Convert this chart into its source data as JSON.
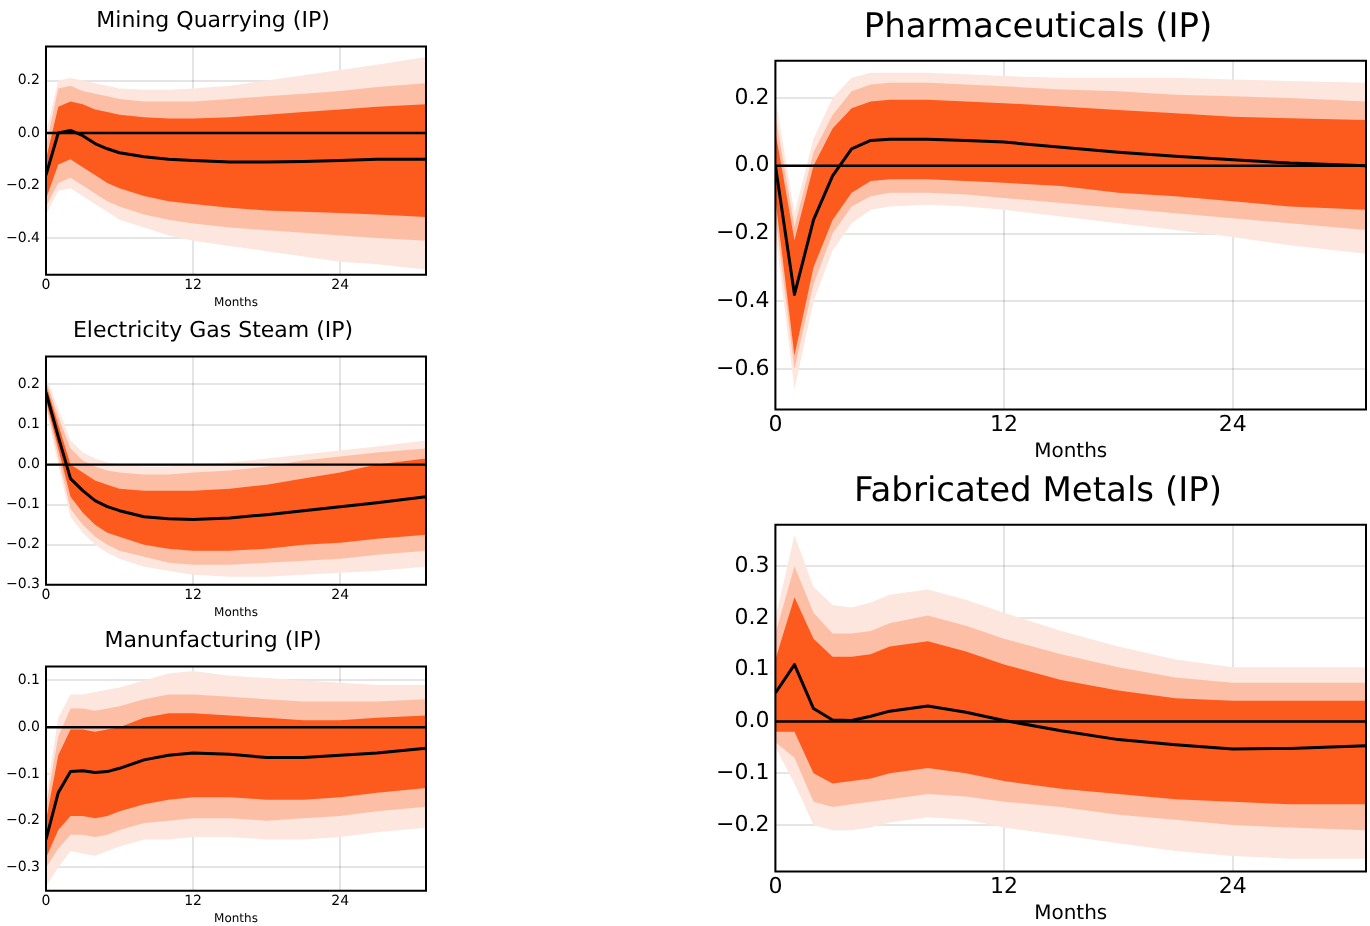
{
  "chart_data": [
    {
      "type": "line",
      "title": "Mining Quarrying (IP)",
      "xlabel": "Months",
      "x": [
        0,
        1,
        2,
        3,
        4,
        5,
        6,
        8,
        10,
        12,
        15,
        18,
        21,
        24,
        27,
        31
      ],
      "xlim": [
        0,
        31
      ],
      "xticks": [
        0,
        12,
        24
      ],
      "ylim": [
        -0.54,
        0.33
      ],
      "yticks": [
        {
          "value": -0.4,
          "label": "−0.4"
        },
        {
          "value": -0.2,
          "label": "−0.2"
        },
        {
          "value": 0,
          "label": "0.0"
        },
        0.2
      ],
      "grid": true,
      "ref_lines": [
        {
          "axis": "y",
          "value": 0,
          "color": "#000000"
        }
      ],
      "series": [
        {
          "color": "#fde6dd",
          "values": [
            null,
            null,
            null,
            null,
            null,
            null,
            null,
            null,
            null,
            null,
            null,
            null,
            null,
            null,
            null,
            null
          ],
          "upper": [
            0.0,
            0.2,
            0.21,
            0.2,
            0.19,
            0.18,
            0.17,
            0.165,
            0.165,
            0.17,
            0.18,
            0.2,
            0.22,
            0.24,
            0.26,
            0.29
          ],
          "lower": [
            -0.31,
            -0.22,
            -0.21,
            -0.24,
            -0.27,
            -0.3,
            -0.33,
            -0.36,
            -0.39,
            -0.41,
            -0.43,
            -0.45,
            -0.47,
            -0.49,
            -0.5,
            -0.52
          ]
        },
        {
          "color": "#fcbfa6",
          "values": [
            null,
            null,
            null,
            null,
            null,
            null,
            null,
            null,
            null,
            null,
            null,
            null,
            null,
            null,
            null,
            null
          ],
          "upper": [
            -0.05,
            0.17,
            0.18,
            0.16,
            0.15,
            0.14,
            0.13,
            0.12,
            0.12,
            0.12,
            0.13,
            0.14,
            0.15,
            0.16,
            0.175,
            0.19
          ],
          "lower": [
            -0.28,
            -0.19,
            -0.17,
            -0.2,
            -0.23,
            -0.26,
            -0.28,
            -0.31,
            -0.33,
            -0.345,
            -0.36,
            -0.37,
            -0.38,
            -0.39,
            -0.4,
            -0.41
          ]
        },
        {
          "color": "#fd5a1e",
          "values": [
            null,
            null,
            null,
            null,
            null,
            null,
            null,
            null,
            null,
            null,
            null,
            null,
            null,
            null,
            null,
            null
          ],
          "upper": [
            -0.1,
            0.1,
            0.12,
            0.11,
            0.09,
            0.08,
            0.07,
            0.06,
            0.055,
            0.055,
            0.06,
            0.07,
            0.08,
            0.09,
            0.1,
            0.11
          ],
          "lower": [
            -0.25,
            -0.12,
            -0.1,
            -0.13,
            -0.16,
            -0.19,
            -0.21,
            -0.24,
            -0.26,
            -0.27,
            -0.285,
            -0.295,
            -0.3,
            -0.305,
            -0.31,
            -0.32
          ]
        },
        {
          "color": "#000000",
          "values": [
            -0.16,
            0.0,
            0.01,
            -0.01,
            -0.04,
            -0.06,
            -0.075,
            -0.09,
            -0.1,
            -0.105,
            -0.11,
            -0.11,
            -0.108,
            -0.105,
            -0.1,
            -0.1
          ]
        }
      ]
    },
    {
      "type": "line",
      "title": "Electricity Gas Steam (IP)",
      "xlabel": "Months",
      "x": [
        0,
        1,
        2,
        3,
        4,
        5,
        6,
        8,
        10,
        12,
        15,
        18,
        21,
        24,
        27,
        31
      ],
      "xlim": [
        0,
        31
      ],
      "xticks": [
        0,
        12,
        24
      ],
      "ylim": [
        -0.3,
        0.27
      ],
      "yticks": [
        {
          "value": -0.3,
          "label": "−0.3"
        },
        {
          "value": -0.2,
          "label": "−0.2"
        },
        {
          "value": -0.1,
          "label": "−0.1"
        },
        {
          "value": 0,
          "label": "0.0"
        },
        0.1,
        0.2
      ],
      "grid": true,
      "ref_lines": [
        {
          "axis": "y",
          "value": 0,
          "color": "#000000"
        }
      ],
      "series": [
        {
          "color": "#fde6dd",
          "values": [
            null,
            null,
            null,
            null,
            null,
            null,
            null,
            null,
            null,
            null,
            null,
            null,
            null,
            null,
            null,
            null
          ],
          "upper": [
            0.22,
            0.14,
            0.06,
            0.03,
            0.015,
            0.005,
            0.0,
            -0.005,
            -0.005,
            0.0,
            0.005,
            0.015,
            0.025,
            0.035,
            0.045,
            0.06
          ],
          "lower": [
            0.14,
            0.0,
            -0.13,
            -0.17,
            -0.2,
            -0.22,
            -0.235,
            -0.255,
            -0.265,
            -0.275,
            -0.28,
            -0.28,
            -0.275,
            -0.27,
            -0.265,
            -0.255
          ]
        },
        {
          "color": "#fcbfa6",
          "values": [
            null,
            null,
            null,
            null,
            null,
            null,
            null,
            null,
            null,
            null,
            null,
            null,
            null,
            null,
            null,
            null
          ],
          "upper": [
            0.21,
            0.12,
            0.04,
            0.01,
            -0.005,
            -0.015,
            -0.02,
            -0.025,
            -0.025,
            -0.02,
            -0.015,
            -0.005,
            0.01,
            0.02,
            0.03,
            0.04
          ],
          "lower": [
            0.15,
            0.02,
            -0.11,
            -0.15,
            -0.18,
            -0.2,
            -0.215,
            -0.23,
            -0.245,
            -0.25,
            -0.25,
            -0.245,
            -0.24,
            -0.235,
            -0.225,
            -0.215
          ]
        },
        {
          "color": "#fd5a1e",
          "values": [
            null,
            null,
            null,
            null,
            null,
            null,
            null,
            null,
            null,
            null,
            null,
            null,
            null,
            null,
            null,
            null
          ],
          "upper": [
            0.2,
            0.1,
            0.0,
            -0.02,
            -0.04,
            -0.05,
            -0.06,
            -0.065,
            -0.065,
            -0.065,
            -0.06,
            -0.05,
            -0.035,
            -0.02,
            0.0,
            0.015
          ],
          "lower": [
            0.16,
            0.04,
            -0.08,
            -0.12,
            -0.15,
            -0.17,
            -0.18,
            -0.2,
            -0.21,
            -0.215,
            -0.215,
            -0.21,
            -0.2,
            -0.195,
            -0.185,
            -0.175
          ]
        },
        {
          "color": "#000000",
          "values": [
            0.18,
            0.07,
            -0.035,
            -0.065,
            -0.09,
            -0.105,
            -0.115,
            -0.13,
            -0.135,
            -0.137,
            -0.133,
            -0.125,
            -0.115,
            -0.105,
            -0.095,
            -0.08
          ]
        }
      ]
    },
    {
      "type": "line",
      "title": "Manunfacturing (IP)",
      "xlabel": "Months",
      "x": [
        0,
        1,
        2,
        3,
        4,
        5,
        6,
        8,
        10,
        12,
        15,
        18,
        21,
        24,
        27,
        31
      ],
      "xlim": [
        0,
        31
      ],
      "xticks": [
        0,
        12,
        24
      ],
      "ylim": [
        -0.35,
        0.13
      ],
      "yticks": [
        {
          "value": -0.3,
          "label": "−0.3"
        },
        {
          "value": -0.2,
          "label": "−0.2"
        },
        {
          "value": -0.1,
          "label": "−0.1"
        },
        {
          "value": 0,
          "label": "0.0"
        },
        0.1
      ],
      "grid": true,
      "ref_lines": [
        {
          "axis": "y",
          "value": 0,
          "color": "#000000"
        }
      ],
      "series": [
        {
          "color": "#fde6dd",
          "values": [
            null,
            null,
            null,
            null,
            null,
            null,
            null,
            null,
            null,
            null,
            null,
            null,
            null,
            null,
            null,
            null
          ],
          "upper": [
            -0.15,
            0.02,
            0.07,
            0.07,
            0.075,
            0.08,
            0.085,
            0.1,
            0.115,
            0.12,
            0.11,
            0.105,
            0.1,
            0.095,
            0.09,
            0.09
          ],
          "lower": [
            -0.34,
            -0.3,
            -0.265,
            -0.27,
            -0.275,
            -0.265,
            -0.255,
            -0.24,
            -0.24,
            -0.235,
            -0.235,
            -0.24,
            -0.24,
            -0.235,
            -0.225,
            -0.215
          ]
        },
        {
          "color": "#fcbfa6",
          "values": [
            null,
            null,
            null,
            null,
            null,
            null,
            null,
            null,
            null,
            null,
            null,
            null,
            null,
            null,
            null,
            null
          ],
          "upper": [
            -0.17,
            -0.02,
            0.04,
            0.04,
            0.035,
            0.04,
            0.045,
            0.06,
            0.07,
            0.07,
            0.065,
            0.06,
            0.055,
            0.055,
            0.055,
            0.06
          ],
          "lower": [
            -0.3,
            -0.26,
            -0.23,
            -0.23,
            -0.235,
            -0.23,
            -0.22,
            -0.205,
            -0.2,
            -0.195,
            -0.195,
            -0.2,
            -0.195,
            -0.19,
            -0.18,
            -0.17
          ]
        },
        {
          "color": "#fd5a1e",
          "values": [
            null,
            null,
            null,
            null,
            null,
            null,
            null,
            null,
            null,
            null,
            null,
            null,
            null,
            null,
            null,
            null
          ],
          "upper": [
            -0.2,
            -0.06,
            -0.005,
            -0.005,
            -0.01,
            -0.005,
            0.0,
            0.02,
            0.03,
            0.03,
            0.025,
            0.02,
            0.015,
            0.015,
            0.02,
            0.025
          ],
          "lower": [
            -0.28,
            -0.22,
            -0.19,
            -0.19,
            -0.195,
            -0.19,
            -0.18,
            -0.165,
            -0.155,
            -0.15,
            -0.15,
            -0.155,
            -0.155,
            -0.15,
            -0.14,
            -0.13
          ]
        },
        {
          "color": "#000000",
          "values": [
            -0.24,
            -0.14,
            -0.095,
            -0.093,
            -0.097,
            -0.095,
            -0.088,
            -0.07,
            -0.06,
            -0.055,
            -0.058,
            -0.065,
            -0.065,
            -0.06,
            -0.055,
            -0.045
          ]
        }
      ]
    },
    {
      "type": "line",
      "title": "Pharmaceuticals (IP)",
      "xlabel": "Months",
      "x": [
        0,
        1,
        2,
        3,
        4,
        5,
        6,
        8,
        10,
        12,
        15,
        18,
        21,
        24,
        27,
        31
      ],
      "xlim": [
        0,
        31
      ],
      "xticks": [
        0,
        12,
        24
      ],
      "ylim": [
        -0.72,
        0.31
      ],
      "yticks": [
        {
          "value": -0.6,
          "label": "−0.6"
        },
        {
          "value": -0.4,
          "label": "−0.4"
        },
        {
          "value": -0.2,
          "label": "−0.2"
        },
        {
          "value": 0,
          "label": "0.0"
        },
        0.2
      ],
      "grid": true,
      "ref_lines": [
        {
          "axis": "y",
          "value": 0,
          "color": "#000000"
        }
      ],
      "series": [
        {
          "color": "#fde6dd",
          "values": [
            null,
            null,
            null,
            null,
            null,
            null,
            null,
            null,
            null,
            null,
            null,
            null,
            null,
            null,
            null,
            null
          ],
          "upper": [
            0.2,
            -0.14,
            0.08,
            0.2,
            0.26,
            0.275,
            0.275,
            0.275,
            0.27,
            0.265,
            0.26,
            0.26,
            0.26,
            0.255,
            0.25,
            0.245
          ],
          "lower": [
            -0.2,
            -0.66,
            -0.4,
            -0.25,
            -0.17,
            -0.13,
            -0.12,
            -0.115,
            -0.12,
            -0.13,
            -0.15,
            -0.17,
            -0.19,
            -0.21,
            -0.235,
            -0.26
          ]
        },
        {
          "color": "#fcbfa6",
          "values": [
            null,
            null,
            null,
            null,
            null,
            null,
            null,
            null,
            null,
            null,
            null,
            null,
            null,
            null,
            null,
            null
          ],
          "upper": [
            0.15,
            -0.18,
            0.04,
            0.15,
            0.22,
            0.24,
            0.245,
            0.245,
            0.24,
            0.235,
            0.225,
            0.22,
            0.21,
            0.205,
            0.2,
            0.19
          ],
          "lower": [
            -0.15,
            -0.6,
            -0.35,
            -0.2,
            -0.12,
            -0.09,
            -0.08,
            -0.08,
            -0.085,
            -0.095,
            -0.11,
            -0.125,
            -0.14,
            -0.155,
            -0.17,
            -0.19
          ]
        },
        {
          "color": "#fd5a1e",
          "values": [
            null,
            null,
            null,
            null,
            null,
            null,
            null,
            null,
            null,
            null,
            null,
            null,
            null,
            null,
            null,
            null
          ],
          "upper": [
            0.1,
            -0.22,
            0.0,
            0.11,
            0.17,
            0.19,
            0.195,
            0.195,
            0.19,
            0.185,
            0.175,
            0.165,
            0.155,
            0.145,
            0.14,
            0.135
          ],
          "lower": [
            -0.1,
            -0.56,
            -0.3,
            -0.16,
            -0.08,
            -0.045,
            -0.04,
            -0.04,
            -0.045,
            -0.05,
            -0.06,
            -0.08,
            -0.09,
            -0.105,
            -0.12,
            -0.13
          ]
        },
        {
          "color": "#000000",
          "values": [
            0.0,
            -0.38,
            -0.16,
            -0.03,
            0.05,
            0.075,
            0.078,
            0.078,
            0.075,
            0.07,
            0.055,
            0.04,
            0.028,
            0.018,
            0.008,
            0.0
          ]
        }
      ]
    },
    {
      "type": "line",
      "title": "Fabricated Metals (IP)",
      "xlabel": "Months",
      "x": [
        0,
        1,
        2,
        3,
        4,
        5,
        6,
        8,
        10,
        12,
        15,
        18,
        21,
        24,
        27,
        31
      ],
      "xlim": [
        0,
        31
      ],
      "xticks": [
        0,
        12,
        24
      ],
      "ylim": [
        -0.29,
        0.38
      ],
      "yticks": [
        {
          "value": -0.2,
          "label": "−0.2"
        },
        {
          "value": -0.1,
          "label": "−0.1"
        },
        {
          "value": 0,
          "label": "0.0"
        },
        0.1,
        0.2,
        0.3
      ],
      "grid": true,
      "ref_lines": [
        {
          "axis": "y",
          "value": 0,
          "color": "#000000"
        }
      ],
      "series": [
        {
          "color": "#fde6dd",
          "values": [
            null,
            null,
            null,
            null,
            null,
            null,
            null,
            null,
            null,
            null,
            null,
            null,
            null,
            null,
            null,
            null
          ],
          "upper": [
            0.2,
            0.36,
            0.26,
            0.225,
            0.22,
            0.23,
            0.245,
            0.255,
            0.235,
            0.21,
            0.175,
            0.145,
            0.12,
            0.105,
            0.105,
            0.105
          ],
          "lower": [
            -0.05,
            -0.12,
            -0.2,
            -0.21,
            -0.21,
            -0.205,
            -0.195,
            -0.185,
            -0.19,
            -0.205,
            -0.22,
            -0.235,
            -0.25,
            -0.26,
            -0.265,
            -0.265
          ]
        },
        {
          "color": "#fcbfa6",
          "values": [
            null,
            null,
            null,
            null,
            null,
            null,
            null,
            null,
            null,
            null,
            null,
            null,
            null,
            null,
            null,
            null
          ],
          "upper": [
            0.17,
            0.3,
            0.21,
            0.17,
            0.17,
            0.175,
            0.19,
            0.205,
            0.185,
            0.16,
            0.13,
            0.105,
            0.085,
            0.075,
            0.075,
            0.075
          ],
          "lower": [
            -0.04,
            -0.07,
            -0.155,
            -0.165,
            -0.16,
            -0.155,
            -0.15,
            -0.14,
            -0.145,
            -0.155,
            -0.165,
            -0.18,
            -0.19,
            -0.2,
            -0.205,
            -0.21
          ]
        },
        {
          "color": "#fd5a1e",
          "values": [
            null,
            null,
            null,
            null,
            null,
            null,
            null,
            null,
            null,
            null,
            null,
            null,
            null,
            null,
            null,
            null
          ],
          "upper": [
            0.12,
            0.24,
            0.16,
            0.125,
            0.125,
            0.13,
            0.145,
            0.155,
            0.135,
            0.11,
            0.08,
            0.06,
            0.045,
            0.04,
            0.04,
            0.04
          ],
          "lower": [
            -0.02,
            -0.02,
            -0.1,
            -0.12,
            -0.115,
            -0.11,
            -0.1,
            -0.09,
            -0.1,
            -0.115,
            -0.13,
            -0.14,
            -0.15,
            -0.155,
            -0.16,
            -0.16
          ]
        },
        {
          "color": "#000000",
          "values": [
            0.055,
            0.11,
            0.025,
            0.003,
            0.002,
            0.01,
            0.02,
            0.03,
            0.018,
            0.002,
            -0.018,
            -0.035,
            -0.045,
            -0.053,
            -0.052,
            -0.047
          ]
        }
      ]
    }
  ]
}
